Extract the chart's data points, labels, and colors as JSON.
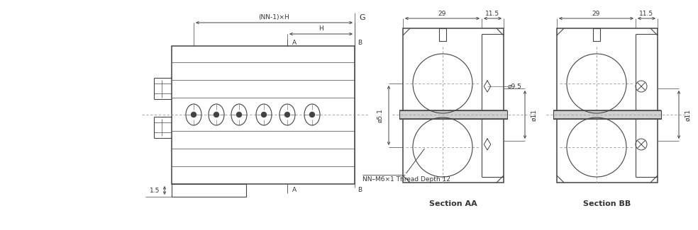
{
  "bg_color": "#ffffff",
  "line_color": "#444444",
  "dim_color": "#444444",
  "text_color": "#333333",
  "centerline_color": "#999999",
  "lw": 0.8,
  "lw_thick": 1.1,
  "fs": 6.5,
  "fs_label": 8.0,
  "annotations": {
    "nn1h_label": "(NN-1)×H",
    "h_label": "H",
    "a_label": "A",
    "b_label": "B",
    "g_label": "G",
    "dim_15": "1.5",
    "dim_29_aa": "29",
    "dim_115_aa": "11.5",
    "dim_29_bb": "29",
    "dim_115_bb": "11.5",
    "dim_phi51": "ø5.1",
    "dim_phi95": "ø9.5",
    "dim_phi11_aa": "ø11",
    "dim_phi11_bb": "ø11",
    "thread_note": "NN–M6×1 Thread Depth 12",
    "section_aa_label": "Section AA",
    "section_bb_label": "Section BB"
  }
}
